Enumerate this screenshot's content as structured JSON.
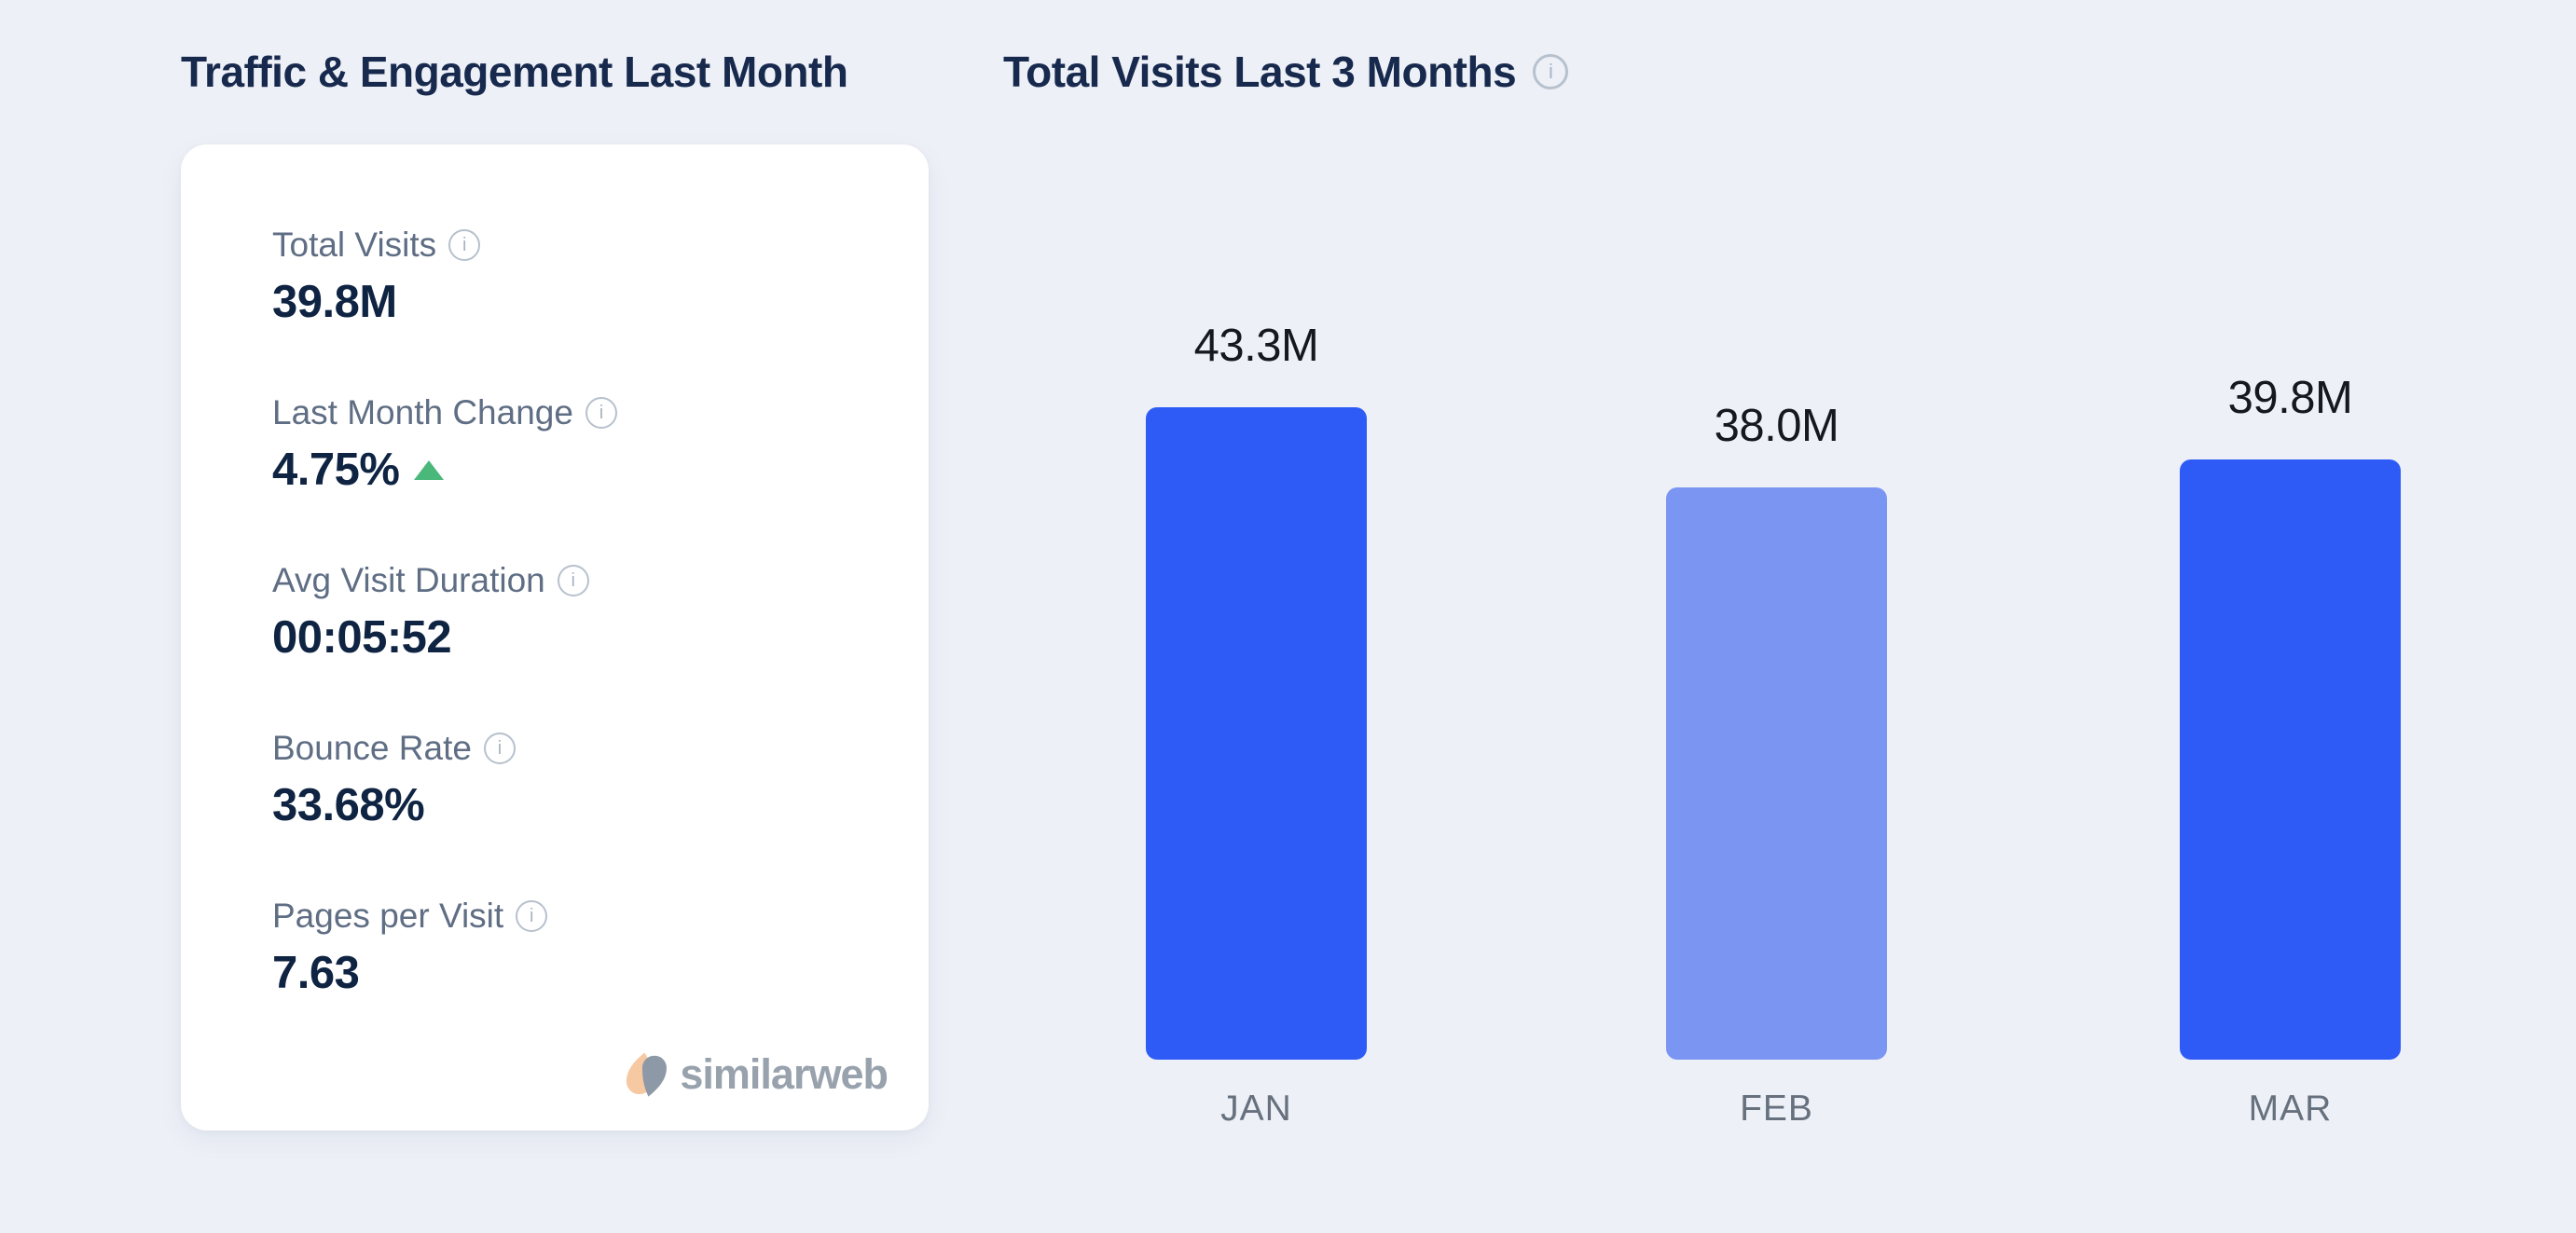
{
  "left_panel": {
    "title": "Traffic & Engagement Last Month",
    "metrics": [
      {
        "label": "Total Visits",
        "value": "39.8M",
        "has_info": true,
        "trend": null
      },
      {
        "label": "Last Month Change",
        "value": "4.75%",
        "has_info": true,
        "trend": "up"
      },
      {
        "label": "Avg Visit Duration",
        "value": "00:05:52",
        "has_info": true,
        "trend": null
      },
      {
        "label": "Bounce Rate",
        "value": "33.68%",
        "has_info": true,
        "trend": null
      },
      {
        "label": "Pages per Visit",
        "value": "7.63",
        "has_info": true,
        "trend": null
      }
    ],
    "brand": "similarweb",
    "info_icon_glyph": "i"
  },
  "chart": {
    "title": "Total Visits Last 3 Months",
    "info_icon_glyph": "i"
  },
  "chart_data": {
    "type": "bar",
    "title": "Total Visits Last 3 Months",
    "categories": [
      "JAN",
      "FEB",
      "MAR"
    ],
    "values": [
      43.3,
      38.0,
      39.8
    ],
    "value_labels": [
      "43.3M",
      "38.0M",
      "39.8M"
    ],
    "unit": "millions of visits",
    "xlabel": "",
    "ylabel": "",
    "ylim": [
      0,
      45
    ],
    "grid": false,
    "legend": false,
    "bar_colors": [
      "#2e5bf6",
      "#7b95f2",
      "#2e5bf6"
    ]
  },
  "colors": {
    "background": "#edf0f7",
    "card_background": "#ffffff",
    "heading": "#17294d",
    "metric_label": "#5f6e84",
    "metric_value": "#0f2442",
    "trend_up_green": "#4bb87b",
    "bar_primary": "#2e5bf6",
    "bar_secondary": "#7b95f2",
    "month_label": "#67717e",
    "brand_gray": "#98a2ad",
    "brand_peach": "#f7c9a3"
  }
}
